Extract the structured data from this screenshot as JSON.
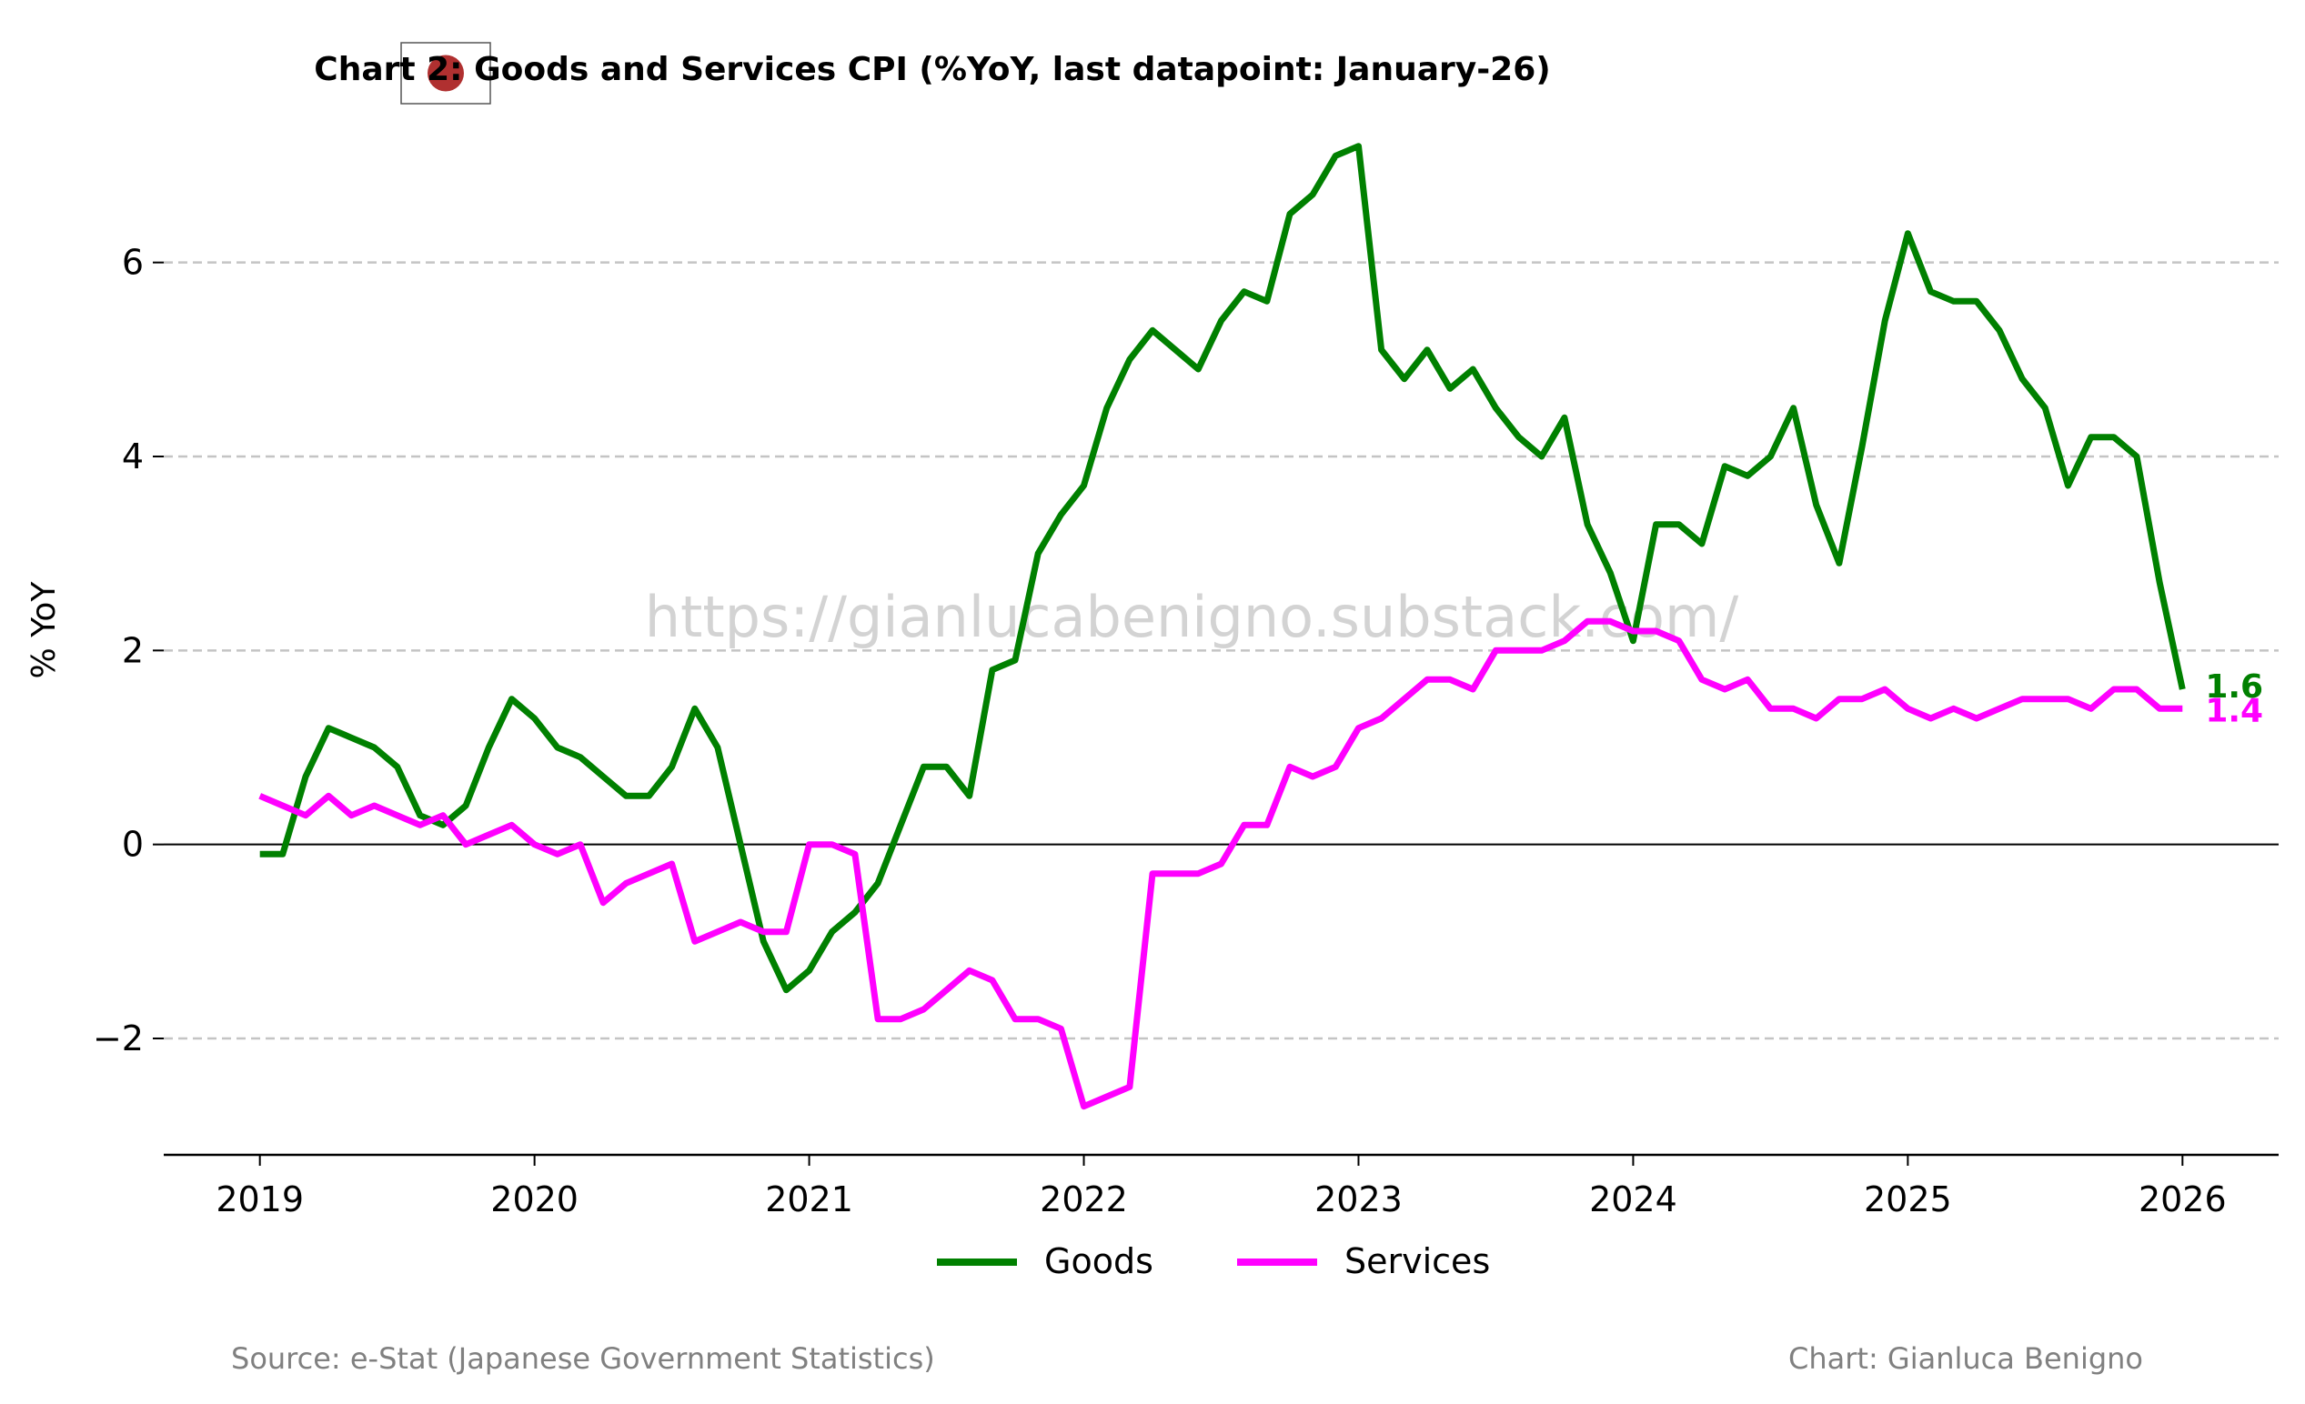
{
  "chart_data": {
    "type": "line",
    "title": "Chart 2: Goods and Services CPI (%YoY, last datapoint: January-26)",
    "xlabel": "",
    "ylabel": "% YoY",
    "xlim": [
      2018.65,
      2026.35
    ],
    "ylim": [
      -3.2,
      7.3
    ],
    "x_ticks": [
      2019,
      2020,
      2021,
      2022,
      2023,
      2024,
      2025,
      2026
    ],
    "x_tick_labels": [
      "2019",
      "2020",
      "2021",
      "2022",
      "2023",
      "2024",
      "2025",
      "2026"
    ],
    "y_ticks": [
      -2,
      0,
      2,
      4,
      6
    ],
    "y_tick_labels": [
      "−2",
      "0",
      "2",
      "4",
      "6"
    ],
    "grid": "horizontal dashed at y ticks",
    "zero_line": true,
    "legend_position": "bottom-center",
    "x_start": "2019-01",
    "x_step": "monthly",
    "series": [
      {
        "name": "Goods",
        "color": "#008000",
        "end_label": "1.6",
        "values": [
          -0.1,
          -0.1,
          0.7,
          1.2,
          1.1,
          1.0,
          0.8,
          0.3,
          0.2,
          0.4,
          1.0,
          1.5,
          1.3,
          1.0,
          0.9,
          0.7,
          0.5,
          0.5,
          0.8,
          1.4,
          1.0,
          0.0,
          -1.0,
          -1.5,
          -1.3,
          -0.9,
          -0.7,
          -0.4,
          0.2,
          0.8,
          0.8,
          0.5,
          1.8,
          1.9,
          3.0,
          3.4,
          3.7,
          4.5,
          5.0,
          5.3,
          5.1,
          4.9,
          5.4,
          5.7,
          5.6,
          6.5,
          6.7,
          7.1,
          7.2,
          5.1,
          4.8,
          5.1,
          4.7,
          4.9,
          4.5,
          4.2,
          4.0,
          4.4,
          3.3,
          2.8,
          2.1,
          3.3,
          3.3,
          3.1,
          3.9,
          3.8,
          4.0,
          4.5,
          3.5,
          2.9,
          4.1,
          5.4,
          6.3,
          5.7,
          5.6,
          5.6,
          5.3,
          4.8,
          4.5,
          3.7,
          4.2,
          4.2,
          4.0,
          2.7,
          1.6
        ]
      },
      {
        "name": "Services",
        "color": "#ff00ff",
        "end_label": "1.4",
        "values": [
          0.5,
          0.4,
          0.3,
          0.5,
          0.3,
          0.4,
          0.3,
          0.2,
          0.3,
          0.0,
          0.1,
          0.2,
          0.0,
          -0.1,
          0.0,
          -0.6,
          -0.4,
          -0.3,
          -0.2,
          -1.0,
          -0.9,
          -0.8,
          -0.9,
          -0.9,
          0.0,
          0.0,
          -0.1,
          -1.8,
          -1.8,
          -1.7,
          -1.5,
          -1.3,
          -1.4,
          -1.8,
          -1.8,
          -1.9,
          -2.7,
          -2.6,
          -2.5,
          -0.3,
          -0.3,
          -0.3,
          -0.2,
          0.2,
          0.2,
          0.8,
          0.7,
          0.8,
          1.2,
          1.3,
          1.5,
          1.7,
          1.7,
          1.6,
          2.0,
          2.0,
          2.0,
          2.1,
          2.3,
          2.3,
          2.2,
          2.2,
          2.1,
          1.7,
          1.6,
          1.7,
          1.4,
          1.4,
          1.3,
          1.5,
          1.5,
          1.6,
          1.4,
          1.3,
          1.4,
          1.3,
          1.4,
          1.5,
          1.5,
          1.5,
          1.4,
          1.6,
          1.6,
          1.4,
          1.4
        ]
      }
    ]
  },
  "watermark": "https://gianlucabenigno.substack.com/",
  "flag": {
    "icon": "japan-flag-icon",
    "disc_color": "#b03030"
  },
  "footer": {
    "source": "Source: e-Stat (Japanese Government Statistics)",
    "credit": "Chart: Gianluca Benigno"
  }
}
